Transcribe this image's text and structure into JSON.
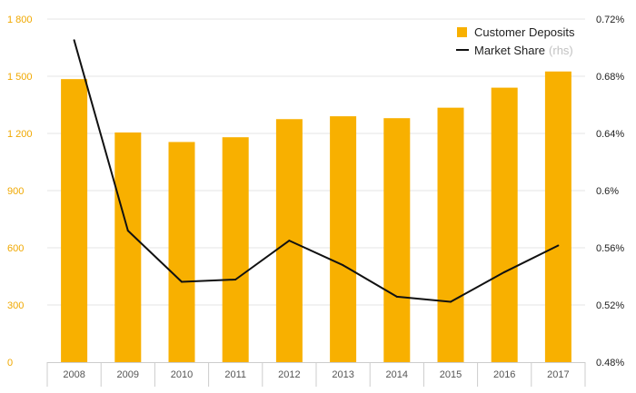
{
  "colors": {
    "bar": "#f8b000",
    "line": "#111111",
    "left_axis_text": "#f0a800",
    "grid": "#e6e6e6",
    "axis": "#cccccc"
  },
  "chart_data": {
    "type": "bar",
    "categories": [
      "2008",
      "2009",
      "2010",
      "2011",
      "2012",
      "2013",
      "2014",
      "2015",
      "2016",
      "2017"
    ],
    "series": [
      {
        "name": "Customer Deposits",
        "type": "bar",
        "axis": "left",
        "values": [
          1485,
          1205,
          1155,
          1180,
          1275,
          1290,
          1280,
          1335,
          1440,
          1525
        ]
      },
      {
        "name": "Market Share",
        "name_suffix": "(rhs)",
        "type": "line",
        "axis": "right",
        "values": [
          0.7052,
          0.572,
          0.5362,
          0.5378,
          0.565,
          0.5478,
          0.5258,
          0.5222,
          0.543,
          0.5616
        ]
      }
    ],
    "left_axis": {
      "ylim": [
        0,
        1800
      ],
      "ticks": [
        0,
        300,
        600,
        900,
        1200,
        1500,
        1800
      ],
      "tick_labels": [
        "0",
        "300",
        "600",
        "900",
        "1 200",
        "1 500",
        "1 800"
      ]
    },
    "right_axis": {
      "ylim": [
        0.48,
        0.72
      ],
      "ticks": [
        0.48,
        0.52,
        0.56,
        0.6,
        0.64,
        0.68,
        0.72
      ],
      "tick_labels": [
        "0.48%",
        "0.52%",
        "0.56%",
        "0.6%",
        "0.64%",
        "0.68%",
        "0.72%"
      ]
    },
    "grid": true,
    "legend_position": "top-right"
  }
}
